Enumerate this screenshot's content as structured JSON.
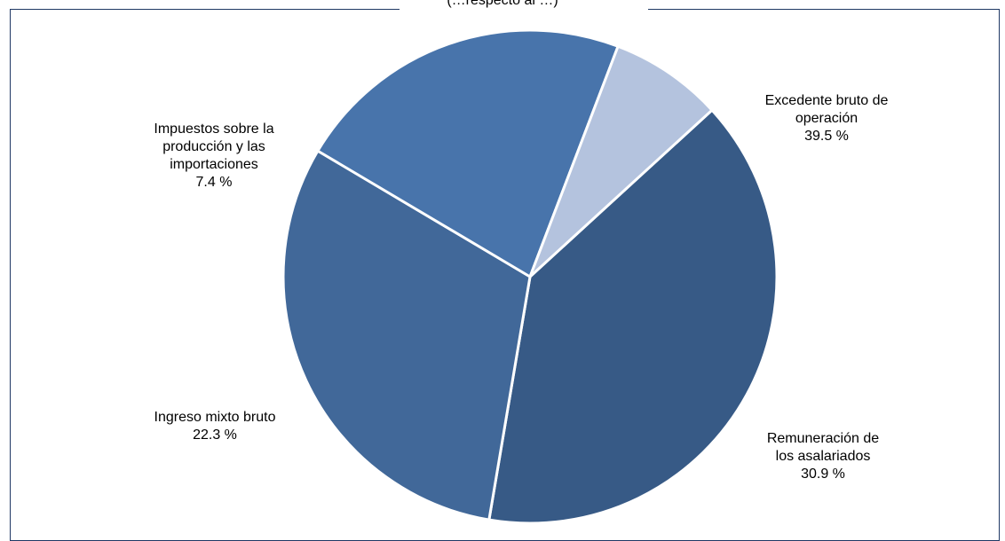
{
  "chart_data": {
    "type": "pie",
    "title": "(…respecto al …)",
    "slices": [
      {
        "label_lines": [
          "Excedente bruto de",
          "operación"
        ],
        "value": 39.5,
        "value_text": "39.5 %",
        "color": "#375a86"
      },
      {
        "label_lines": [
          "Remuneración de",
          "los asalariados"
        ],
        "value": 30.9,
        "value_text": "30.9 %",
        "color": "#416899"
      },
      {
        "label_lines": [
          "Ingreso mixto bruto"
        ],
        "value": 22.3,
        "value_text": "22.3 %",
        "color": "#4874ab"
      },
      {
        "label_lines": [
          "Impuestos sobre la",
          "producción y las",
          "importaciones"
        ],
        "value": 7.4,
        "value_text": "7.4 %",
        "color": "#b4c3de"
      }
    ]
  }
}
